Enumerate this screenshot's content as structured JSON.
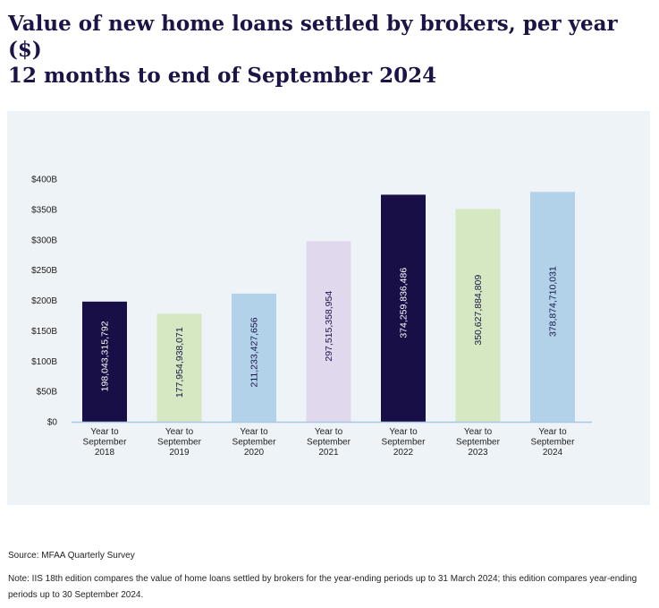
{
  "title_line1": "Value of new home loans settled by brokers, per year ($)",
  "title_line2": "12 months to end of September 2024",
  "source": "Source: MFAA Quarterly Survey",
  "note": "Note: IIS 18th edition compares the value of home loans settled by brokers for the year-ending periods up to 31 March 2024; this edition compares year-ending periods up to 30 September 2024.",
  "chart_data": {
    "type": "bar",
    "categories": [
      [
        "Year to",
        "September",
        "2018"
      ],
      [
        "Year to",
        "September",
        "2019"
      ],
      [
        "Year to",
        "September",
        "2020"
      ],
      [
        "Year to",
        "September",
        "2021"
      ],
      [
        "Year to",
        "September",
        "2022"
      ],
      [
        "Year to",
        "September",
        "2023"
      ],
      [
        "Year to",
        "September",
        "2024"
      ]
    ],
    "values": [
      198043315792,
      177954938071,
      211233427656,
      297515358954,
      374259836486,
      350627884809,
      378874710031
    ],
    "value_labels": [
      "198,043,315,792",
      "177,954,938,071",
      "211,233,427,656",
      "297,515,358,954",
      "374,259,836,486",
      "350,627,884,809",
      "378,874,710,031"
    ],
    "bar_colors": [
      "#170f45",
      "#d6e8c2",
      "#b2d2ea",
      "#e0d8ec",
      "#170f45",
      "#d6e8c2",
      "#b2d2ea"
    ],
    "label_colors": [
      "#ffffff",
      "#1b1446",
      "#1b1446",
      "#1b1446",
      "#ffffff",
      "#1b1446",
      "#1b1446"
    ],
    "ylim": [
      0,
      400000000000
    ],
    "yticks": [
      0,
      50000000000,
      100000000000,
      150000000000,
      200000000000,
      250000000000,
      300000000000,
      350000000000,
      400000000000
    ],
    "ytick_labels": [
      "$0",
      "$50B",
      "$100B",
      "$150B",
      "$200B",
      "$250B",
      "$300B",
      "$350B",
      "$400B"
    ],
    "axis_color": "#a9c8e2",
    "grid": false
  }
}
